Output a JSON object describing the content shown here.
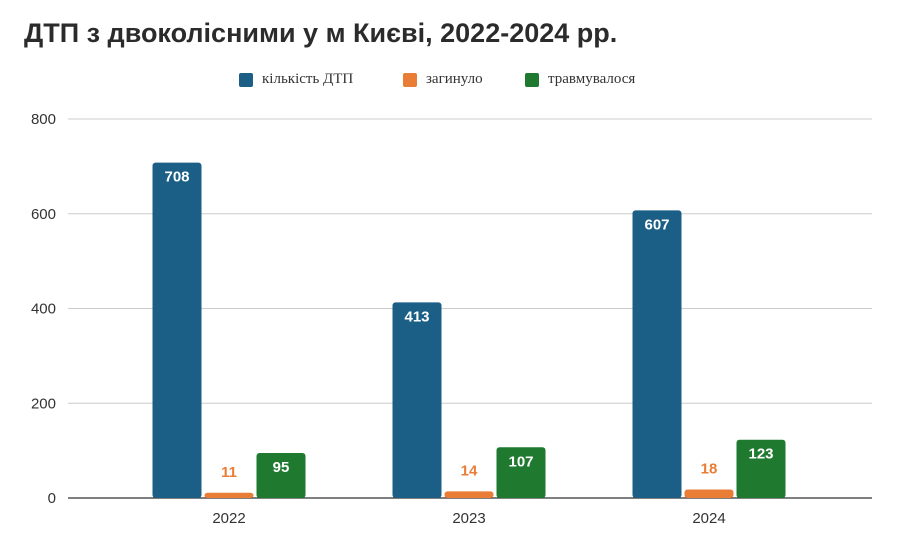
{
  "chart_data": {
    "type": "bar",
    "title": "ДТП з двоколісними у м Києві, 2022-2024 рр.",
    "categories": [
      "2022",
      "2023",
      "2024"
    ],
    "series": [
      {
        "name": "кількість ДТП",
        "values": [
          708,
          413,
          607
        ],
        "color": "#1b5f87"
      },
      {
        "name": "загинуло",
        "values": [
          11,
          14,
          18
        ],
        "color": "#ea7d36"
      },
      {
        "name": "травмувалося",
        "values": [
          95,
          107,
          123
        ],
        "color": "#1f7a30"
      }
    ],
    "ylim": [
      0,
      800
    ],
    "yticks": [
      0,
      200,
      400,
      600,
      800
    ],
    "grid": true,
    "legend_position": "top-center",
    "data_labels": true
  }
}
